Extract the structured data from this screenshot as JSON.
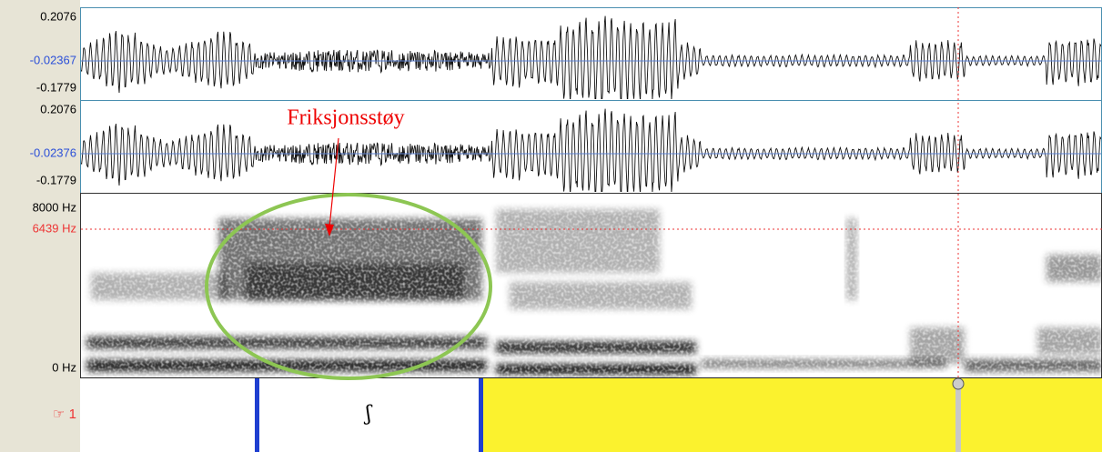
{
  "waveform": {
    "channels": [
      {
        "max": "0.2076",
        "center": "-0.02367",
        "min": "-0.1779"
      },
      {
        "max": "0.2076",
        "center": "-0.02376",
        "min": "-0.1779"
      }
    ]
  },
  "spectrogram": {
    "max": "8000 Hz",
    "cursor": "6439 Hz",
    "min": "0 Hz"
  },
  "annotation": "Friksjonsstøy",
  "tier": {
    "name": "☞ 1",
    "intervals": [
      "ʃ"
    ]
  }
}
